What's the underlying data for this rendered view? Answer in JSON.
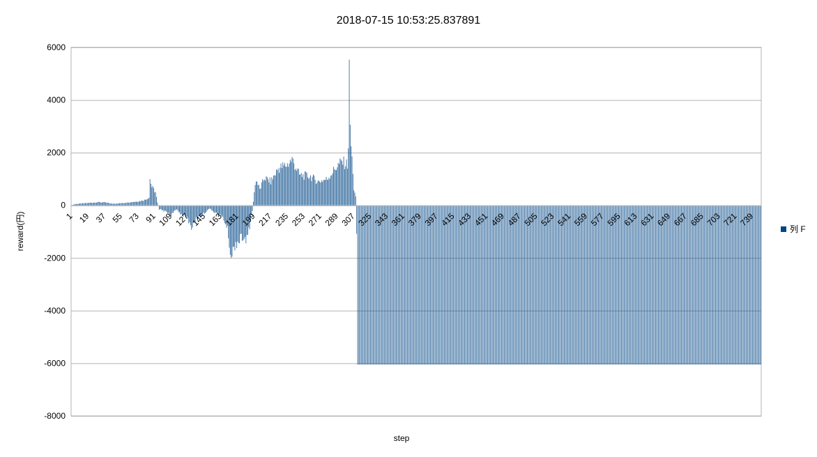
{
  "chart_data": {
    "type": "bar",
    "title": "2018-07-15 10:53:25.837891",
    "xlabel": "step",
    "ylabel": "reward(円)",
    "ylim": [
      -8000,
      6000
    ],
    "yticks": [
      6000,
      4000,
      2000,
      0,
      -2000,
      -4000,
      -6000,
      -8000
    ],
    "grid": true,
    "legend_position": "right",
    "series": [
      {
        "name": "列 F",
        "color": "#004586"
      }
    ],
    "x_range": [
      1,
      748
    ],
    "xtick_labels": [
      1,
      19,
      37,
      55,
      73,
      91,
      109,
      127,
      145,
      163,
      181,
      199,
      217,
      235,
      253,
      271,
      289,
      307,
      325,
      343,
      361,
      379,
      397,
      415,
      433,
      451,
      469,
      487,
      505,
      523,
      541,
      559,
      577,
      595,
      613,
      631,
      649,
      667,
      685,
      703,
      721,
      739
    ],
    "value_profile": [
      {
        "step": 1,
        "value": 0
      },
      {
        "step": 5,
        "value": 50
      },
      {
        "step": 20,
        "value": 90
      },
      {
        "step": 30,
        "value": 120
      },
      {
        "step": 37,
        "value": 110
      },
      {
        "step": 45,
        "value": 60
      },
      {
        "step": 55,
        "value": 80
      },
      {
        "step": 65,
        "value": 120
      },
      {
        "step": 73,
        "value": 150
      },
      {
        "step": 80,
        "value": 200
      },
      {
        "step": 85,
        "value": 300
      },
      {
        "step": 86,
        "value": 1000
      },
      {
        "step": 88,
        "value": 700
      },
      {
        "step": 92,
        "value": 500
      },
      {
        "step": 94,
        "value": 100
      },
      {
        "step": 96,
        "value": -150
      },
      {
        "step": 104,
        "value": -250
      },
      {
        "step": 109,
        "value": -350
      },
      {
        "step": 115,
        "value": -150
      },
      {
        "step": 120,
        "value": -350
      },
      {
        "step": 126,
        "value": -450
      },
      {
        "step": 131,
        "value": -850
      },
      {
        "step": 136,
        "value": -500
      },
      {
        "step": 145,
        "value": -300
      },
      {
        "step": 150,
        "value": -120
      },
      {
        "step": 158,
        "value": -300
      },
      {
        "step": 165,
        "value": -450
      },
      {
        "step": 170,
        "value": -900
      },
      {
        "step": 174,
        "value": -2000
      },
      {
        "step": 178,
        "value": -1500
      },
      {
        "step": 186,
        "value": -1200
      },
      {
        "step": 190,
        "value": -1400
      },
      {
        "step": 194,
        "value": -800
      },
      {
        "step": 197,
        "value": -200
      },
      {
        "step": 199,
        "value": 500
      },
      {
        "step": 201,
        "value": 1000
      },
      {
        "step": 205,
        "value": 600
      },
      {
        "step": 210,
        "value": 1050
      },
      {
        "step": 217,
        "value": 900
      },
      {
        "step": 225,
        "value": 1400
      },
      {
        "step": 235,
        "value": 1550
      },
      {
        "step": 240,
        "value": 1750
      },
      {
        "step": 248,
        "value": 1150
      },
      {
        "step": 260,
        "value": 1100
      },
      {
        "step": 268,
        "value": 900
      },
      {
        "step": 278,
        "value": 1000
      },
      {
        "step": 289,
        "value": 1500
      },
      {
        "step": 294,
        "value": 1650
      },
      {
        "step": 300,
        "value": 1550
      },
      {
        "step": 301,
        "value": 2300
      },
      {
        "step": 302,
        "value": 4950
      },
      {
        "step": 303,
        "value": 3100
      },
      {
        "step": 304,
        "value": 2200
      },
      {
        "step": 306,
        "value": 1300
      },
      {
        "step": 307,
        "value": 600
      },
      {
        "step": 309,
        "value": 300
      },
      {
        "step": 310,
        "value": -1100
      },
      {
        "step": 311,
        "value": -6050
      },
      {
        "step": 748,
        "value": -6050
      }
    ]
  }
}
